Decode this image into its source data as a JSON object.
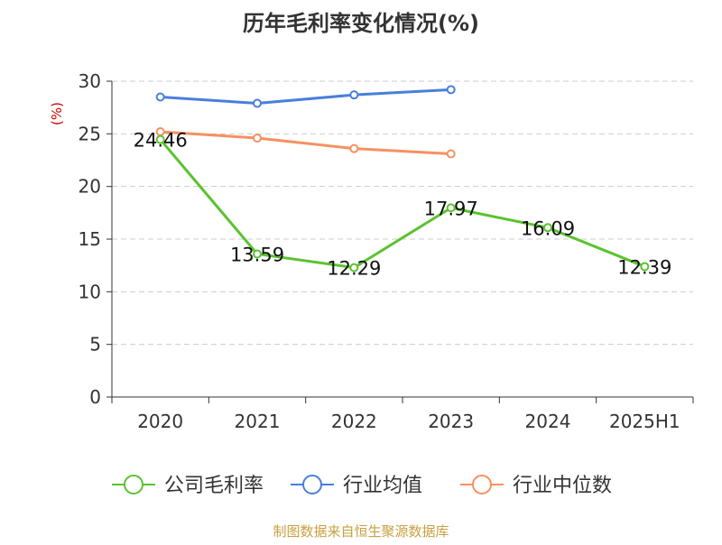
{
  "chart_data": {
    "type": "line",
    "title": "历年毛利率变化情况(%)",
    "ylabel": "(%)",
    "xlabel": "",
    "categories": [
      "2020",
      "2021",
      "2022",
      "2023",
      "2024",
      "2025H1"
    ],
    "ylim": [
      0,
      30
    ],
    "yticks": [
      0,
      5,
      10,
      15,
      20,
      25,
      30
    ],
    "grid": true,
    "legend_position": "bottom",
    "series": [
      {
        "name": "公司毛利率",
        "color": "#5cc230",
        "values": [
          24.46,
          13.59,
          12.29,
          17.97,
          16.09,
          12.39
        ],
        "labels": [
          "24.46",
          "13.59",
          "12.29",
          "17.97",
          "16.09",
          "12.39"
        ]
      },
      {
        "name": "行业均值",
        "color": "#4a7fdc",
        "values": [
          28.5,
          27.9,
          28.7,
          29.2,
          null,
          null
        ]
      },
      {
        "name": "行业中位数",
        "color": "#f59160",
        "values": [
          25.2,
          24.6,
          23.6,
          23.1,
          null,
          null
        ]
      }
    ]
  },
  "source_text": "制图数据来自恒生聚源数据库",
  "colors": {
    "title": "#333333",
    "axis": "#333333",
    "ylabel": "#cc0000",
    "grid": "#cccccc",
    "source": "#c8a040"
  }
}
